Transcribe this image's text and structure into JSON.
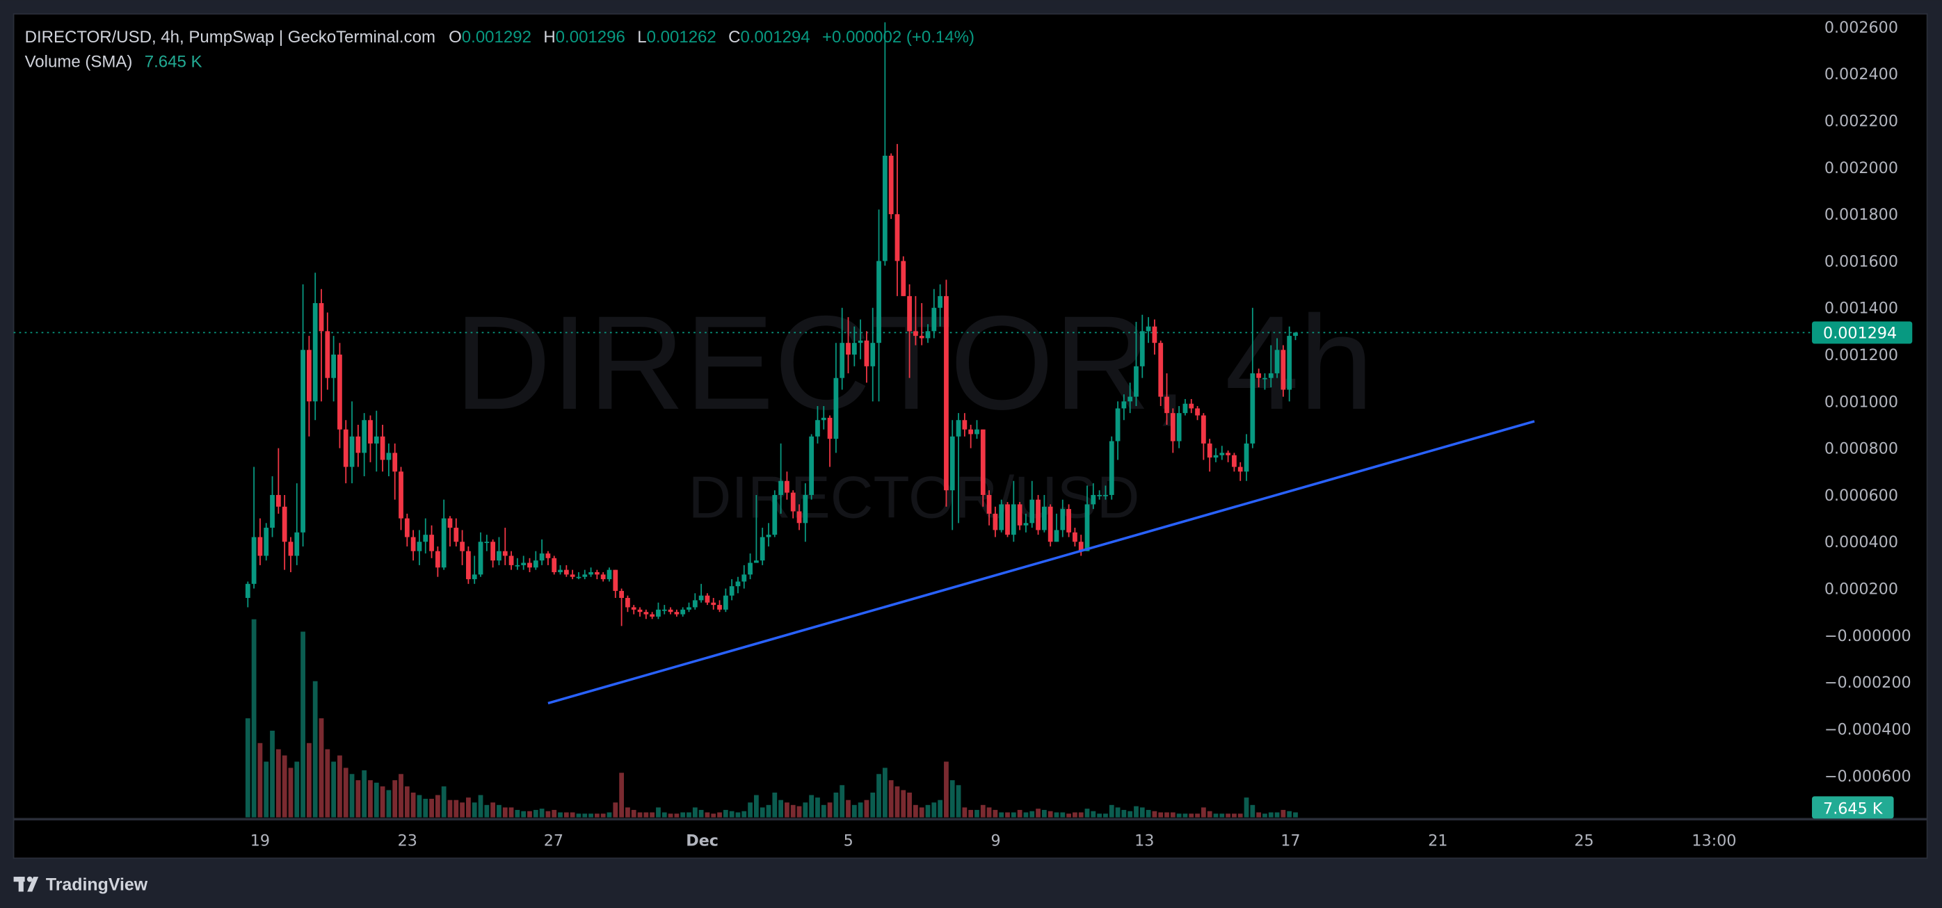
{
  "header": {
    "symbol_line": "DIRECTOR/USD, 4h, PumpSwap | GeckoTerminal.com",
    "open_label": "O",
    "open": "0.001292",
    "high_label": "H",
    "high": "0.001296",
    "low_label": "L",
    "low": "0.001262",
    "close_label": "C",
    "close": "0.001294",
    "change": "+0.000002 (+0.14%)",
    "volume_label": "Volume (SMA)",
    "volume_value": "7.645 K"
  },
  "watermark": {
    "main": "DIRECTOR, 4h",
    "sub": "DIRECTOR/USD"
  },
  "price_axis": {
    "ticks": [
      "0.002600",
      "0.002400",
      "0.002200",
      "0.002000",
      "0.001800",
      "0.001600",
      "0.001400",
      "0.001200",
      "0.001000",
      "0.000800",
      "0.000600",
      "0.000400",
      "0.000200",
      "−0.000000",
      "−0.000200",
      "−0.000400",
      "−0.000600"
    ],
    "last_price_label": "0.001294",
    "volume_label": "7.645 K"
  },
  "time_axis": {
    "ticks": [
      "19",
      "23",
      "27",
      "Dec",
      "5",
      "9",
      "13",
      "17",
      "21",
      "25",
      "13:00"
    ]
  },
  "footer": {
    "brand": "TradingView"
  },
  "colors": {
    "up": "#089981",
    "down": "#f23645",
    "vol_up": "#0b5d50",
    "vol_down": "#7a2a30",
    "trendline": "#2962ff",
    "last_price": "#089981",
    "volume_badge": "#22ab94"
  },
  "chart_data": {
    "type": "candlestick",
    "interval": "4h",
    "start": "Nov 18 16:00",
    "first_open": 0.00016,
    "ylim": [
      -0.0007,
      0.0026
    ],
    "grid": false,
    "columns": [
      "high",
      "low",
      "close",
      "volume_k"
    ],
    "candles": [
      [
        0.00023,
        0.00012,
        0.00022,
        80
      ],
      [
        0.00072,
        0.0002,
        0.00042,
        160
      ],
      [
        0.0005,
        0.0003,
        0.00034,
        60
      ],
      [
        0.00048,
        0.00032,
        0.00046,
        45
      ],
      [
        0.00068,
        0.00042,
        0.0006,
        70
      ],
      [
        0.0008,
        0.00052,
        0.00055,
        55
      ],
      [
        0.0006,
        0.00028,
        0.0004,
        50
      ],
      [
        0.00042,
        0.00027,
        0.00034,
        40
      ],
      [
        0.00065,
        0.0003,
        0.00044,
        45
      ],
      [
        0.0015,
        0.00038,
        0.00122,
        150
      ],
      [
        0.00128,
        0.00085,
        0.001,
        60
      ],
      [
        0.00155,
        0.00092,
        0.00142,
        110
      ],
      [
        0.00148,
        0.001,
        0.0013,
        80
      ],
      [
        0.00138,
        0.00105,
        0.0011,
        55
      ],
      [
        0.00128,
        0.001,
        0.0012,
        45
      ],
      [
        0.00125,
        0.0008,
        0.00088,
        50
      ],
      [
        0.00092,
        0.00065,
        0.00072,
        40
      ],
      [
        0.001,
        0.00065,
        0.00085,
        35
      ],
      [
        0.0009,
        0.00072,
        0.00078,
        30
      ],
      [
        0.00095,
        0.00068,
        0.00092,
        38
      ],
      [
        0.00094,
        0.00074,
        0.00082,
        30
      ],
      [
        0.00096,
        0.0007,
        0.00085,
        28
      ],
      [
        0.0009,
        0.0007,
        0.00075,
        25
      ],
      [
        0.00082,
        0.00068,
        0.00078,
        22
      ],
      [
        0.00082,
        0.00058,
        0.0007,
        30
      ],
      [
        0.00072,
        0.00045,
        0.0005,
        35
      ],
      [
        0.00052,
        0.00038,
        0.00042,
        25
      ],
      [
        0.00045,
        0.00032,
        0.00036,
        20
      ],
      [
        0.00045,
        0.0003,
        0.0004,
        18
      ],
      [
        0.0005,
        0.00035,
        0.00043,
        15
      ],
      [
        0.00047,
        0.00033,
        0.00036,
        15
      ],
      [
        0.00038,
        0.00025,
        0.00029,
        18
      ],
      [
        0.00058,
        0.00028,
        0.0005,
        25
      ],
      [
        0.00051,
        0.00038,
        0.00046,
        14
      ],
      [
        0.0005,
        0.00038,
        0.0004,
        14
      ],
      [
        0.00045,
        0.0003,
        0.00036,
        12
      ],
      [
        0.00038,
        0.00022,
        0.00024,
        16
      ],
      [
        0.00034,
        0.00022,
        0.00026,
        12
      ],
      [
        0.00044,
        0.00025,
        0.0004,
        18
      ],
      [
        0.00043,
        0.00036,
        0.0004,
        10
      ],
      [
        0.00041,
        0.00029,
        0.00032,
        12
      ],
      [
        0.00042,
        0.0003,
        0.00036,
        10
      ],
      [
        0.00046,
        0.0003,
        0.00034,
        8
      ],
      [
        0.00036,
        0.00028,
        0.0003,
        8
      ],
      [
        0.00033,
        0.00028,
        0.0003,
        6
      ],
      [
        0.00034,
        0.00028,
        0.00031,
        5
      ],
      [
        0.00033,
        0.00027,
        0.00029,
        5
      ],
      [
        0.00036,
        0.00028,
        0.00032,
        6
      ],
      [
        0.00041,
        0.0003,
        0.00035,
        7
      ],
      [
        0.00036,
        0.0003,
        0.00033,
        5
      ],
      [
        0.00034,
        0.00026,
        0.00027,
        6
      ],
      [
        0.0003,
        0.00026,
        0.00028,
        4
      ],
      [
        0.0003,
        0.00025,
        0.00026,
        4
      ],
      [
        0.00028,
        0.00024,
        0.00025,
        4
      ],
      [
        0.00027,
        0.00024,
        0.00025,
        3
      ],
      [
        0.00028,
        0.00024,
        0.00026,
        3
      ],
      [
        0.00029,
        0.00025,
        0.00027,
        3
      ],
      [
        0.00028,
        0.00024,
        0.00026,
        3
      ],
      [
        0.00027,
        0.00023,
        0.00024,
        3
      ],
      [
        0.00029,
        0.00023,
        0.00028,
        4
      ],
      [
        0.00028,
        0.00016,
        0.00019,
        12
      ],
      [
        0.0002,
        4e-05,
        0.00016,
        36
      ],
      [
        0.00017,
        0.0001,
        0.00012,
        8
      ],
      [
        0.00013,
        9e-05,
        0.00011,
        6
      ],
      [
        0.00012,
        8e-05,
        0.0001,
        4
      ],
      [
        0.00011,
        7e-05,
        9e-05,
        4
      ],
      [
        0.0001,
        7e-05,
        8e-05,
        4
      ],
      [
        0.00014,
        7e-05,
        0.00011,
        8
      ],
      [
        0.00013,
        9e-05,
        0.00011,
        4
      ],
      [
        0.00012,
        9e-05,
        0.0001,
        3
      ],
      [
        0.00011,
        8e-05,
        9e-05,
        3
      ],
      [
        0.00012,
        8e-05,
        0.00011,
        4
      ],
      [
        0.00014,
        0.0001,
        0.00012,
        4
      ],
      [
        0.00018,
        0.00011,
        0.00015,
        8
      ],
      [
        0.00022,
        0.00014,
        0.00017,
        6
      ],
      [
        0.00018,
        0.00013,
        0.00014,
        4
      ],
      [
        0.00016,
        0.00011,
        0.00013,
        3
      ],
      [
        0.00015,
        0.0001,
        0.00011,
        4
      ],
      [
        0.0002,
        0.0001,
        0.00017,
        6
      ],
      [
        0.00024,
        0.00015,
        0.00021,
        5
      ],
      [
        0.00025,
        0.00018,
        0.00023,
        4
      ],
      [
        0.0003,
        0.0002,
        0.00026,
        5
      ],
      [
        0.00035,
        0.00024,
        0.00031,
        12
      ],
      [
        0.0006,
        0.00031,
        0.00032,
        18
      ],
      [
        0.00046,
        0.0003,
        0.00042,
        8
      ],
      [
        0.00048,
        0.00038,
        0.00043,
        10
      ],
      [
        0.00062,
        0.00042,
        0.0006,
        20
      ],
      [
        0.00082,
        0.00052,
        0.00066,
        14
      ],
      [
        0.0007,
        0.00058,
        0.00061,
        12
      ],
      [
        0.00062,
        0.0005,
        0.00053,
        10
      ],
      [
        0.00056,
        0.00045,
        0.00048,
        9
      ],
      [
        0.00065,
        0.0004,
        0.0006,
        12
      ],
      [
        0.00086,
        0.00058,
        0.00085,
        18
      ],
      [
        0.00098,
        0.00082,
        0.00092,
        16
      ],
      [
        0.00098,
        0.00088,
        0.00093,
        10
      ],
      [
        0.00094,
        0.00072,
        0.00084,
        12
      ],
      [
        0.00125,
        0.00078,
        0.0011,
        20
      ],
      [
        0.0014,
        0.00105,
        0.00125,
        26
      ],
      [
        0.00136,
        0.00112,
        0.0012,
        14
      ],
      [
        0.00132,
        0.00115,
        0.00125,
        10
      ],
      [
        0.00135,
        0.00118,
        0.00126,
        12
      ],
      [
        0.0013,
        0.00108,
        0.00115,
        14
      ],
      [
        0.0014,
        0.001,
        0.00125,
        20
      ],
      [
        0.00182,
        0.001,
        0.0016,
        35
      ],
      [
        0.00262,
        0.00158,
        0.00205,
        40
      ],
      [
        0.00206,
        0.00178,
        0.0018,
        30
      ],
      [
        0.0021,
        0.00145,
        0.0016,
        25
      ],
      [
        0.00162,
        0.00145,
        0.00145,
        22
      ],
      [
        0.0015,
        0.0011,
        0.0013,
        20
      ],
      [
        0.00145,
        0.00124,
        0.00128,
        10
      ],
      [
        0.00142,
        0.00124,
        0.00127,
        8
      ],
      [
        0.00133,
        0.00125,
        0.0013,
        10
      ],
      [
        0.00148,
        0.00127,
        0.0014,
        12
      ],
      [
        0.0015,
        0.00132,
        0.00145,
        14
      ],
      [
        0.00152,
        0.00055,
        0.00062,
        45
      ],
      [
        0.00092,
        0.00045,
        0.00085,
        30
      ],
      [
        0.00095,
        0.00048,
        0.00092,
        26
      ],
      [
        0.00095,
        0.00085,
        0.00088,
        8
      ],
      [
        0.0009,
        0.0008,
        0.00086,
        6
      ],
      [
        0.00092,
        0.00084,
        0.00088,
        6
      ],
      [
        0.00088,
        0.00055,
        0.0006,
        10
      ],
      [
        0.00062,
        0.00047,
        0.00052,
        8
      ],
      [
        0.00055,
        0.00042,
        0.00045,
        6
      ],
      [
        0.00058,
        0.00044,
        0.00056,
        4
      ],
      [
        0.00057,
        0.00042,
        0.00043,
        4
      ],
      [
        0.00066,
        0.0004,
        0.00056,
        4
      ],
      [
        0.00057,
        0.00045,
        0.00047,
        6
      ],
      [
        0.00052,
        0.00044,
        0.00048,
        4
      ],
      [
        0.00066,
        0.00046,
        0.00058,
        5
      ],
      [
        0.0006,
        0.00043,
        0.00045,
        7
      ],
      [
        0.0006,
        0.00044,
        0.00055,
        6
      ],
      [
        0.00056,
        0.00038,
        0.0004,
        5
      ],
      [
        0.00052,
        0.0004,
        0.00045,
        4
      ],
      [
        0.00058,
        0.00042,
        0.00054,
        4
      ],
      [
        0.00056,
        0.00042,
        0.00044,
        3
      ],
      [
        0.00046,
        0.00038,
        0.0004,
        4
      ],
      [
        0.00043,
        0.00034,
        0.00036,
        4
      ],
      [
        0.00064,
        0.00036,
        0.00056,
        7
      ],
      [
        0.00065,
        0.00054,
        0.0006,
        5
      ],
      [
        0.00062,
        0.00058,
        0.0006,
        3
      ],
      [
        0.00064,
        0.00058,
        0.0006,
        3
      ],
      [
        0.00085,
        0.00058,
        0.00083,
        10
      ],
      [
        0.001,
        0.00075,
        0.00097,
        8
      ],
      [
        0.00103,
        0.00092,
        0.001,
        6
      ],
      [
        0.00108,
        0.00095,
        0.00102,
        5
      ],
      [
        0.00134,
        0.00098,
        0.00115,
        9
      ],
      [
        0.00137,
        0.0011,
        0.0013,
        8
      ],
      [
        0.00136,
        0.00125,
        0.00132,
        6
      ],
      [
        0.00135,
        0.0012,
        0.00125,
        5
      ],
      [
        0.00126,
        0.00098,
        0.00102,
        4
      ],
      [
        0.00112,
        0.0009,
        0.00095,
        4
      ],
      [
        0.00097,
        0.00078,
        0.00083,
        4
      ],
      [
        0.00098,
        0.0008,
        0.00095,
        3
      ],
      [
        0.00101,
        0.00094,
        0.00099,
        3
      ],
      [
        0.00101,
        0.00095,
        0.00097,
        3
      ],
      [
        0.00098,
        0.00092,
        0.00094,
        3
      ],
      [
        0.00095,
        0.00075,
        0.00082,
        8
      ],
      [
        0.00084,
        0.0007,
        0.00076,
        5
      ],
      [
        0.0008,
        0.00074,
        0.00077,
        3
      ],
      [
        0.00081,
        0.00075,
        0.00078,
        3
      ],
      [
        0.00079,
        0.00074,
        0.00077,
        3
      ],
      [
        0.00078,
        0.0007,
        0.00072,
        3
      ],
      [
        0.00074,
        0.00066,
        0.0007,
        3
      ],
      [
        0.00086,
        0.00066,
        0.00082,
        16
      ],
      [
        0.0014,
        0.0008,
        0.00112,
        10
      ],
      [
        0.00114,
        0.00106,
        0.0011,
        4
      ],
      [
        0.00112,
        0.00105,
        0.0011,
        3
      ],
      [
        0.00124,
        0.00106,
        0.00112,
        4
      ],
      [
        0.00127,
        0.0011,
        0.00122,
        4
      ],
      [
        0.00124,
        0.00102,
        0.00105,
        6
      ],
      [
        0.00132,
        0.001,
        0.00128,
        5
      ],
      [
        0.001296,
        0.001262,
        0.001294,
        4
      ]
    ],
    "last_price": 0.001294,
    "volume_sma_k": 7.645,
    "trendline": {
      "from": {
        "date": "Nov 26 20:00",
        "price": -0.00029
      },
      "to": {
        "date": "Dec 23 16:00",
        "price": 0.000915
      }
    }
  }
}
